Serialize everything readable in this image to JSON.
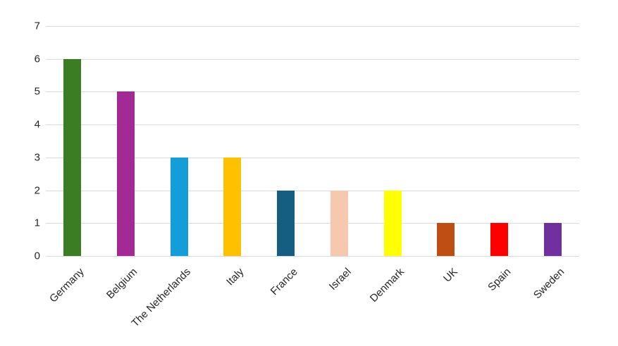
{
  "chart_data": {
    "type": "bar",
    "title": "",
    "xlabel": "",
    "ylabel": "",
    "categories": [
      "Germany",
      "Belgium",
      "The Netherlands",
      "Italy",
      "France",
      "Israel",
      "Denmark",
      "UK",
      "Spain",
      "Sweden"
    ],
    "values": [
      6,
      5,
      3,
      3,
      2,
      2,
      2,
      1,
      1,
      1
    ],
    "bar_colors": [
      "#3a7d22",
      "#a32994",
      "#149ed9",
      "#ffc000",
      "#165d82",
      "#f6c8ae",
      "#ffff00",
      "#bf4e15",
      "#ff0000",
      "#7030a0"
    ],
    "ylim": [
      0,
      7
    ],
    "yticks": [
      0,
      1,
      2,
      3,
      4,
      5,
      6,
      7
    ],
    "grid": true,
    "gridline_color": "#d9d9d9",
    "tick_label_color": "#262626",
    "legend": false,
    "background_color": "#ffffff"
  }
}
